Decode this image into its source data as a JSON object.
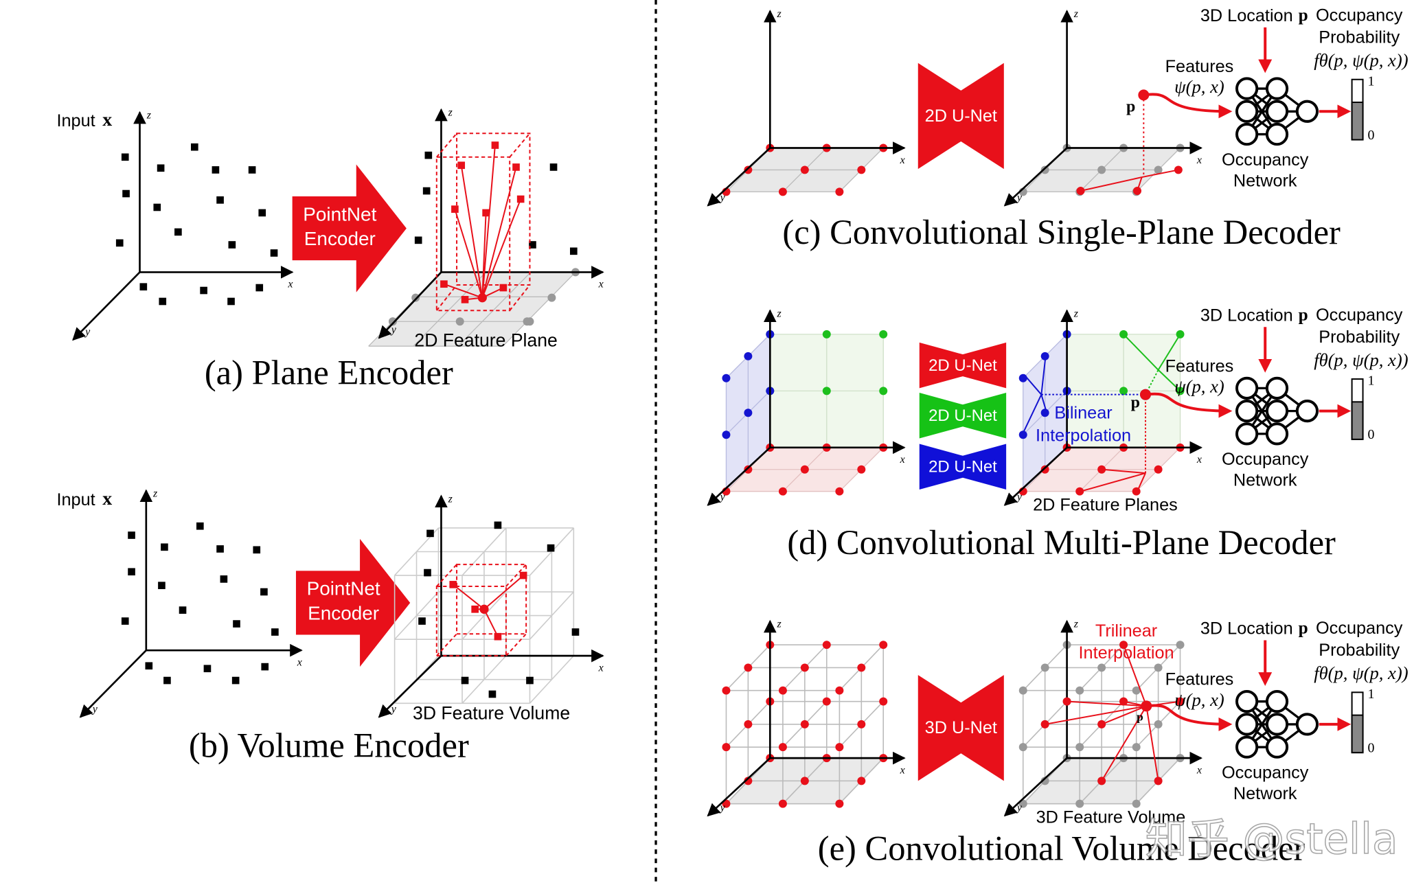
{
  "axes": {
    "x": "x",
    "y": "y",
    "z": "z"
  },
  "panel_a": {
    "input": "Input",
    "input_symbol": "x",
    "encoder": [
      "PointNet",
      "Encoder"
    ],
    "feature_label": "2D Feature Plane",
    "caption": "(a) Plane Encoder"
  },
  "panel_b": {
    "input": "Input",
    "input_symbol": "x",
    "encoder": [
      "PointNet",
      "Encoder"
    ],
    "feature_label": "3D Feature Volume",
    "caption": "(b) Volume Encoder"
  },
  "panel_c": {
    "unet": "2D U-Net",
    "point": "p",
    "location": "3D Location",
    "location_symbol": "p",
    "features": "Features",
    "features_symbol": "ψ(p, x)",
    "network": [
      "Occupancy",
      "Network"
    ],
    "probability": [
      "Occupancy",
      "Probability"
    ],
    "probability_symbol": "fθ(p, ψ(p, x))",
    "scale_top": "1",
    "scale_bottom": "0",
    "caption": "(c) Convolutional Single-Plane Decoder"
  },
  "panel_d": {
    "unets": [
      "2D U-Net",
      "2D U-Net",
      "2D U-Net"
    ],
    "point": "p",
    "interpolation": [
      "Bilinear",
      "Interpolation"
    ],
    "feature_label": "2D Feature Planes",
    "location": "3D Location",
    "location_symbol": "p",
    "features": "Features",
    "features_symbol": "ψ(p, x)",
    "network": [
      "Occupancy",
      "Network"
    ],
    "probability": [
      "Occupancy",
      "Probability"
    ],
    "probability_symbol": "fθ(p, ψ(p, x))",
    "scale_top": "1",
    "scale_bottom": "0",
    "caption": "(d) Convolutional Multi-Plane Decoder"
  },
  "panel_e": {
    "unet": "3D U-Net",
    "point": "p",
    "interpolation": [
      "Trilinear",
      "Interpolation"
    ],
    "feature_label": "3D Feature Volume",
    "location": "3D Location",
    "location_symbol": "p",
    "features": "Features",
    "features_symbol": "ψ(p, x)",
    "network": [
      "Occupancy",
      "Network"
    ],
    "probability": [
      "Occupancy",
      "Probability"
    ],
    "probability_symbol": "fθ(p, ψ(p, x))",
    "scale_top": "1",
    "scale_bottom": "0",
    "caption": "(e) Convolutional Volume Decoder"
  },
  "watermark": "知乎 @stella"
}
